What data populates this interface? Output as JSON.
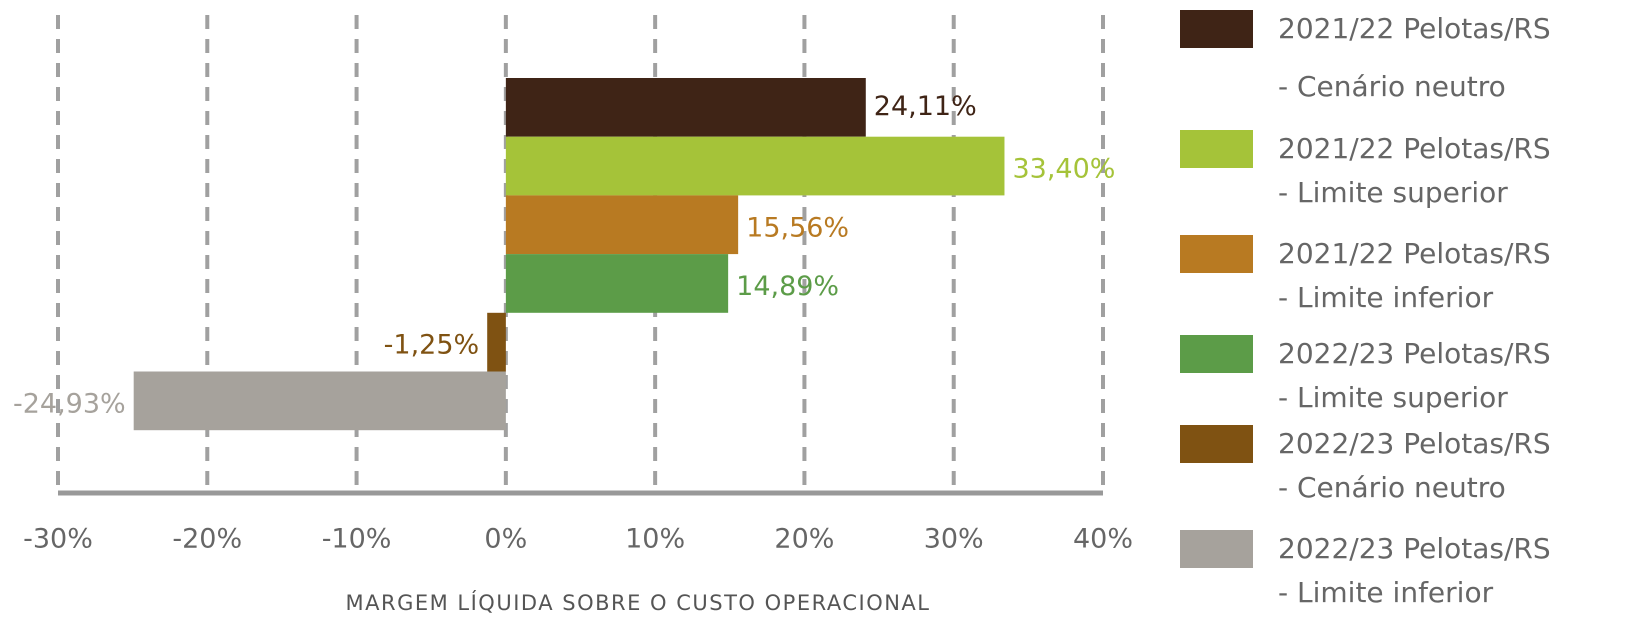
{
  "chart_data": {
    "type": "bar",
    "orientation": "horizontal",
    "xlabel": "MARGEM LÍQUIDA SOBRE O CUSTO OPERACIONAL",
    "xlim": [
      -30,
      40
    ],
    "xticks": [
      {
        "value": -30,
        "label": "-30%"
      },
      {
        "value": -20,
        "label": "-20%"
      },
      {
        "value": -10,
        "label": "-10%"
      },
      {
        "value": 0,
        "label": "0%"
      },
      {
        "value": 10,
        "label": "10%"
      },
      {
        "value": 20,
        "label": "20%"
      },
      {
        "value": 30,
        "label": "30%"
      },
      {
        "value": 40,
        "label": "40%"
      }
    ],
    "grid": true,
    "legend": "right",
    "series": [
      {
        "name": "2021/22 Pelotas/RS - Cenário neutro",
        "color": "#3f2416",
        "label_color": "#3f2416",
        "values": [
          24.11
        ],
        "value_labels": [
          "24,11%"
        ]
      },
      {
        "name": "2021/22 Pelotas/RS - Limite superior",
        "color": "#a5c339",
        "label_color": "#a5c339",
        "values": [
          33.4
        ],
        "value_labels": [
          "33,40%"
        ]
      },
      {
        "name": "2021/22 Pelotas/RS - Limite inferior",
        "color": "#b87a22",
        "label_color": "#b87a22",
        "values": [
          15.56
        ],
        "value_labels": [
          "15,56%"
        ]
      },
      {
        "name": "2022/23 Pelotas/RS - Limite superior",
        "color": "#5c9c48",
        "label_color": "#5c9c48",
        "values": [
          14.89
        ],
        "value_labels": [
          "14,89%"
        ]
      },
      {
        "name": "2022/23 Pelotas/RS - Cenário neutro",
        "color": "#7f5212",
        "label_color": "#7f5212",
        "values": [
          -1.25
        ],
        "value_labels": [
          "-1,25%"
        ]
      },
      {
        "name": "2022/23 Pelotas/RS - Limite inferior",
        "color": "#a6a29c",
        "label_color": "#a6a29c",
        "values": [
          -24.93
        ],
        "value_labels": [
          "-24,93%"
        ]
      }
    ]
  }
}
